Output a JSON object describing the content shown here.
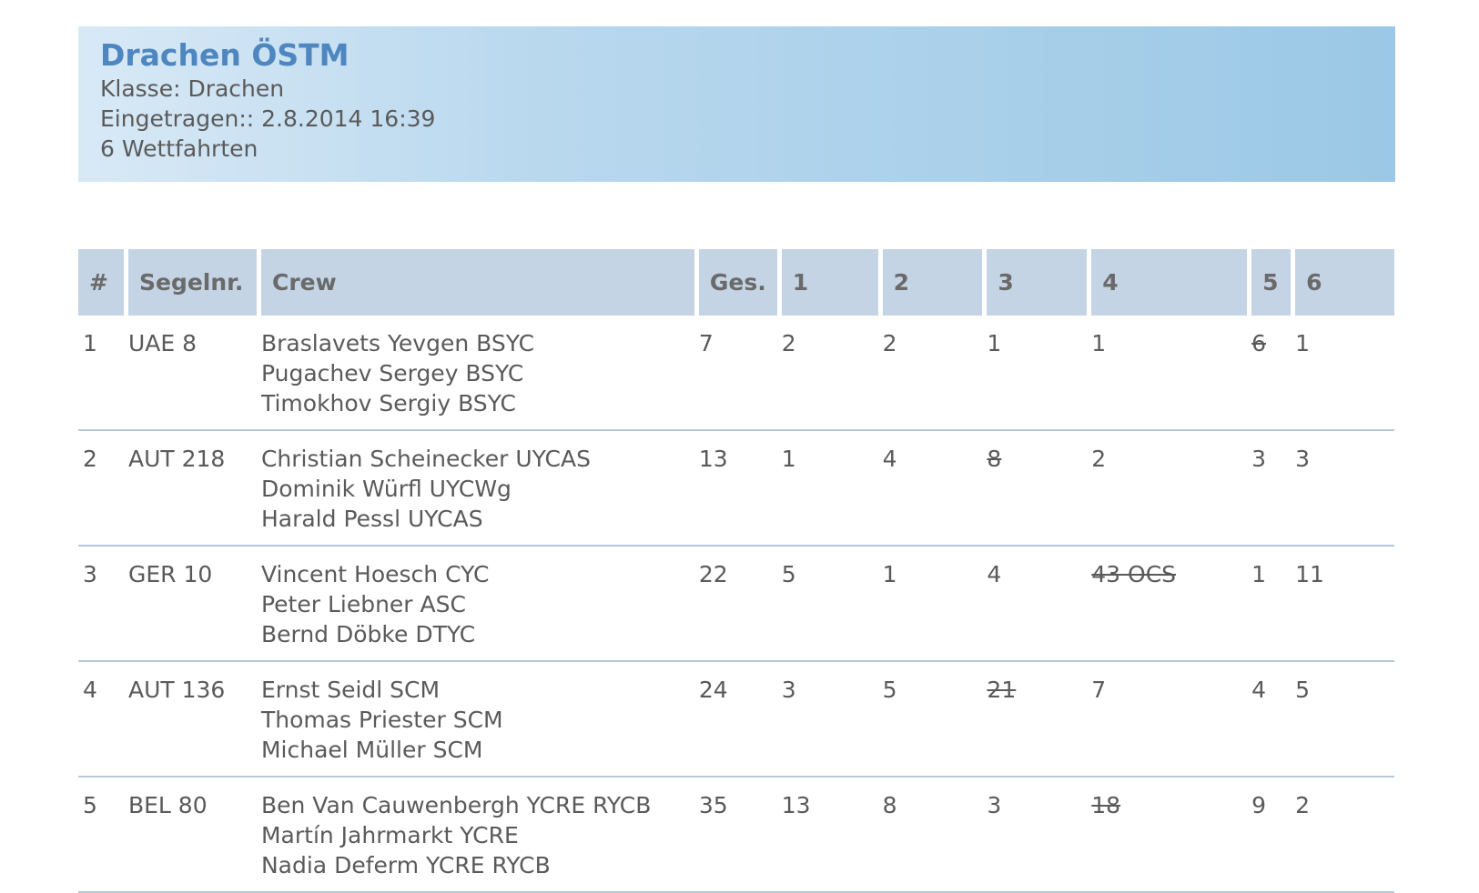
{
  "header": {
    "title": "Drachen ÖSTM",
    "class_line": "Klasse: Drachen",
    "entered_line": "Eingetragen:: 2.8.2014 16:39",
    "races_line": "6 Wettfahrten"
  },
  "table": {
    "columns": [
      "#",
      "Segelnr.",
      "Crew",
      "Ges.",
      "1",
      "2",
      "3",
      "4",
      "5",
      "6"
    ],
    "rows": [
      {
        "rank": "1",
        "sail": "UAE 8",
        "crew": [
          "Braslavets Yevgen BSYC",
          "Pugachev Sergey BSYC",
          "Timokhov Sergiy BSYC"
        ],
        "total": "7",
        "races": [
          {
            "value": "2",
            "discarded": false
          },
          {
            "value": "2",
            "discarded": false
          },
          {
            "value": "1",
            "discarded": false
          },
          {
            "value": "1",
            "discarded": false
          },
          {
            "value": "6",
            "discarded": true
          },
          {
            "value": "1",
            "discarded": false
          }
        ]
      },
      {
        "rank": "2",
        "sail": "AUT 218",
        "crew": [
          "Christian Scheinecker UYCAS",
          "Dominik Würfl UYCWg",
          "Harald Pessl UYCAS"
        ],
        "total": "13",
        "races": [
          {
            "value": "1",
            "discarded": false
          },
          {
            "value": "4",
            "discarded": false
          },
          {
            "value": "8",
            "discarded": true
          },
          {
            "value": "2",
            "discarded": false
          },
          {
            "value": "3",
            "discarded": false
          },
          {
            "value": "3",
            "discarded": false
          }
        ]
      },
      {
        "rank": "3",
        "sail": "GER 10",
        "crew": [
          "Vincent Hoesch CYC",
          "Peter Liebner ASC",
          "Bernd Döbke DTYC"
        ],
        "total": "22",
        "races": [
          {
            "value": "5",
            "discarded": false
          },
          {
            "value": "1",
            "discarded": false
          },
          {
            "value": "4",
            "discarded": false
          },
          {
            "value": "43 OCS",
            "discarded": true
          },
          {
            "value": "1",
            "discarded": false
          },
          {
            "value": "11",
            "discarded": false
          }
        ]
      },
      {
        "rank": "4",
        "sail": "AUT 136",
        "crew": [
          "Ernst Seidl SCM",
          "Thomas Priester SCM",
          "Michael Müller SCM"
        ],
        "total": "24",
        "races": [
          {
            "value": "3",
            "discarded": false
          },
          {
            "value": "5",
            "discarded": false
          },
          {
            "value": "21",
            "discarded": true
          },
          {
            "value": "7",
            "discarded": false
          },
          {
            "value": "4",
            "discarded": false
          },
          {
            "value": "5",
            "discarded": false
          }
        ]
      },
      {
        "rank": "5",
        "sail": "BEL 80",
        "crew": [
          "Ben Van Cauwenbergh YCRE RYCB",
          "Martín Jahrmarkt YCRE",
          "Nadia Deferm YCRE RYCB"
        ],
        "total": "35",
        "races": [
          {
            "value": "13",
            "discarded": false
          },
          {
            "value": "8",
            "discarded": false
          },
          {
            "value": "3",
            "discarded": false
          },
          {
            "value": "18",
            "discarded": true
          },
          {
            "value": "9",
            "discarded": false
          },
          {
            "value": "2",
            "discarded": false
          }
        ]
      }
    ]
  }
}
